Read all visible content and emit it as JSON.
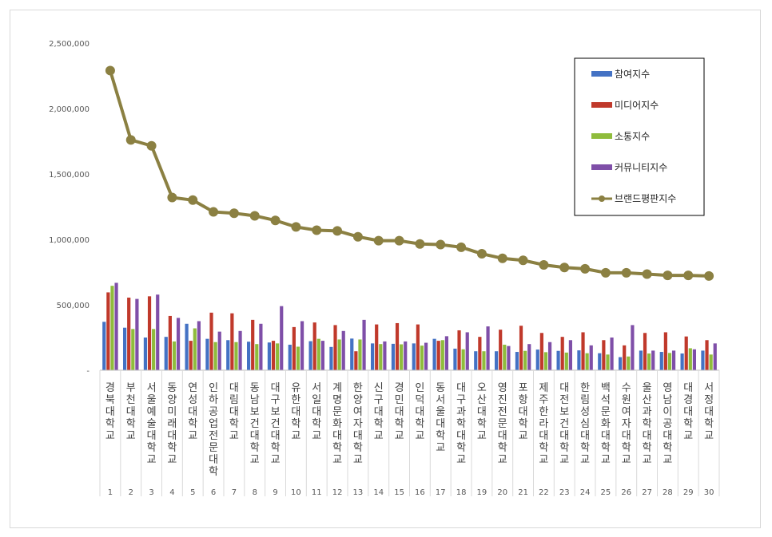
{
  "chart_data": {
    "type": "bar",
    "categories": [
      "경북대학교",
      "부천대학교",
      "서울예술대학교",
      "동양미래대학교",
      "연성대학교",
      "인하공업전문대학",
      "대림대학교",
      "동남보건대학교",
      "대구보건대학교",
      "유한대학교",
      "서일대학교",
      "계명문화대학교",
      "한양여자대학교",
      "신구대학교",
      "경민대학교",
      "인덕대학교",
      "동서울대학교",
      "대구과학대학교",
      "오산대학교",
      "영진전문대학교",
      "포항대학교",
      "제주한라대학교",
      "대전보건대학교",
      "한림성심대학교",
      "백석문화대학교",
      "수원여자대학교",
      "울산과학대학교",
      "영남이공대학교",
      "대경대학교",
      "서정대학교"
    ],
    "ranks": [
      "1",
      "2",
      "3",
      "4",
      "5",
      "6",
      "7",
      "8",
      "9",
      "10",
      "11",
      "12",
      "13",
      "14",
      "15",
      "16",
      "17",
      "18",
      "19",
      "20",
      "21",
      "22",
      "23",
      "24",
      "25",
      "26",
      "27",
      "28",
      "29",
      "30"
    ],
    "series": [
      {
        "name": "참여지수",
        "color": "#4472c4",
        "type": "bar",
        "values": [
          370000,
          325000,
          250000,
          255000,
          355000,
          240000,
          230000,
          218000,
          212000,
          195000,
          222000,
          178000,
          242000,
          205000,
          202000,
          205000,
          240000,
          165000,
          145000,
          145000,
          140000,
          158000,
          148000,
          152000,
          130000,
          100000,
          150000,
          140000,
          128000,
          150000
        ]
      },
      {
        "name": "미디어지수",
        "color": "#c0392b",
        "type": "bar",
        "values": [
          595000,
          555000,
          565000,
          415000,
          225000,
          440000,
          435000,
          385000,
          225000,
          330000,
          365000,
          345000,
          145000,
          350000,
          360000,
          350000,
          225000,
          305000,
          255000,
          310000,
          340000,
          285000,
          255000,
          290000,
          230000,
          190000,
          285000,
          290000,
          258000,
          230000
        ]
      },
      {
        "name": "소통지수",
        "color": "#8fbc3c",
        "type": "bar",
        "values": [
          645000,
          315000,
          315000,
          220000,
          320000,
          215000,
          215000,
          200000,
          205000,
          180000,
          240000,
          235000,
          235000,
          200000,
          198000,
          188000,
          230000,
          160000,
          145000,
          195000,
          148000,
          138000,
          135000,
          130000,
          120000,
          105000,
          128000,
          132000,
          168000,
          120000
        ]
      },
      {
        "name": "커뮤니티지수",
        "color": "#7f4fa8",
        "type": "bar",
        "values": [
          668000,
          545000,
          578000,
          400000,
          375000,
          295000,
          300000,
          355000,
          490000,
          375000,
          225000,
          300000,
          385000,
          220000,
          220000,
          210000,
          260000,
          290000,
          335000,
          185000,
          200000,
          215000,
          230000,
          190000,
          250000,
          345000,
          150000,
          150000,
          160000,
          205000
        ]
      },
      {
        "name": "브랜드평판지수",
        "color": "#8b8042",
        "type": "line",
        "values": [
          2290000,
          1760000,
          1715000,
          1320000,
          1300000,
          1210000,
          1200000,
          1180000,
          1145000,
          1095000,
          1070000,
          1065000,
          1020000,
          990000,
          990000,
          965000,
          960000,
          940000,
          890000,
          855000,
          840000,
          805000,
          785000,
          775000,
          745000,
          745000,
          735000,
          725000,
          725000,
          720000
        ]
      }
    ],
    "ylim": [
      0,
      2500000
    ],
    "yticks": [
      0,
      500000,
      1000000,
      1500000,
      2000000,
      2500000
    ],
    "ytick_labels": [
      "-",
      "500,000",
      "1,000,000",
      "1,500,000",
      "2,000,000",
      "2,500,000"
    ],
    "legend_position": "top-right",
    "grid": false
  }
}
